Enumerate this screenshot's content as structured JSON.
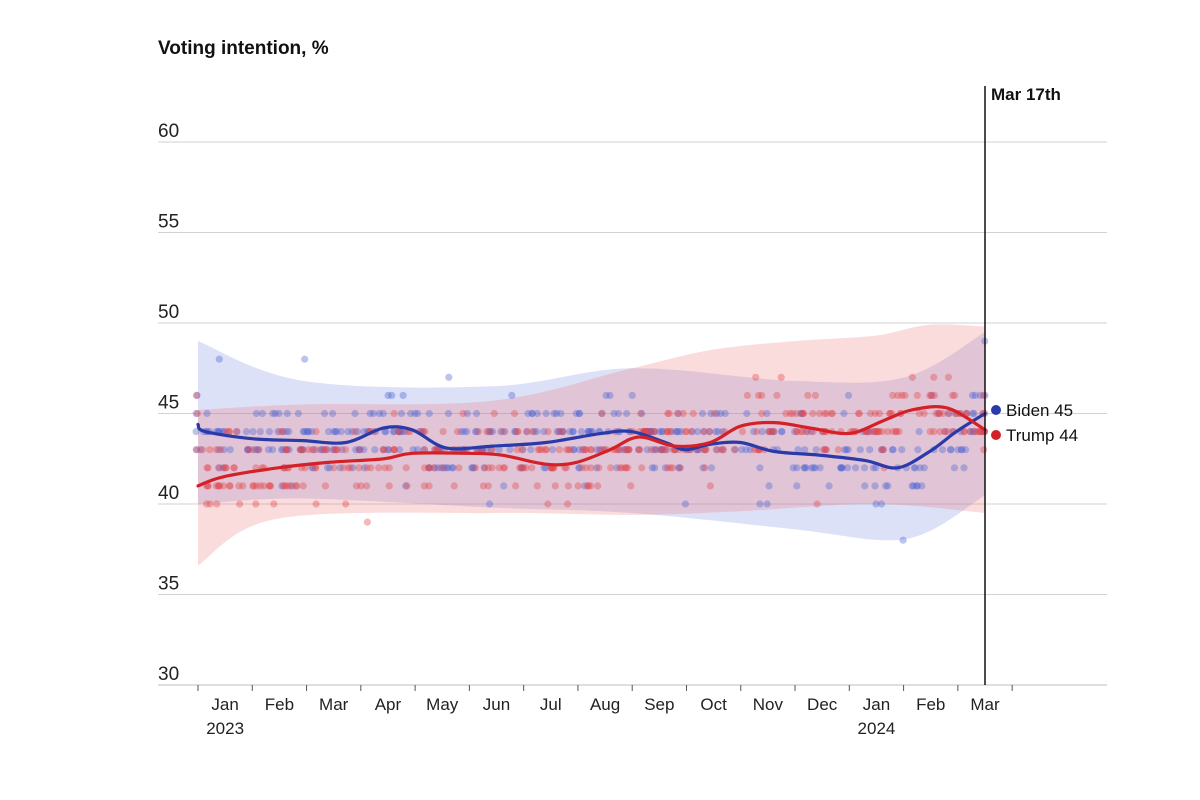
{
  "chart_data": {
    "type": "scatter",
    "title": "Voting intention, %",
    "xlabel": "",
    "ylabel": "",
    "ylim": [
      30,
      62
    ],
    "yticks": [
      30,
      35,
      40,
      45,
      50,
      55,
      60
    ],
    "grid": true,
    "x_range": [
      "2023-01-01",
      "2024-03-17"
    ],
    "month_ticks": [
      "Jan",
      "Feb",
      "Mar",
      "Apr",
      "May",
      "Jun",
      "Jul",
      "Aug",
      "Sep",
      "Oct",
      "Nov",
      "Dec",
      "Jan",
      "Feb",
      "Mar"
    ],
    "year_labels": [
      {
        "month_index": 0,
        "label": "2023"
      },
      {
        "month_index": 12,
        "label": "2024"
      }
    ],
    "marker": {
      "date": "2024-03-17",
      "label": "Mar 17th"
    },
    "series": [
      {
        "name": "Biden",
        "end_value": 45,
        "end_label": "Biden 45",
        "color": "#2a3aa8",
        "trend": [
          {
            "x": "2022-12-18",
            "y": 44.4
          },
          {
            "x": "2023-01-05",
            "y": 44.0
          },
          {
            "x": "2023-02-01",
            "y": 43.6
          },
          {
            "x": "2023-03-01",
            "y": 43.5
          },
          {
            "x": "2023-03-25",
            "y": 43.4
          },
          {
            "x": "2023-04-15",
            "y": 44.2
          },
          {
            "x": "2023-05-01",
            "y": 44.1
          },
          {
            "x": "2023-05-20",
            "y": 43.1
          },
          {
            "x": "2023-06-15",
            "y": 43.2
          },
          {
            "x": "2023-07-15",
            "y": 43.4
          },
          {
            "x": "2023-08-15",
            "y": 43.9
          },
          {
            "x": "2023-09-01",
            "y": 44.0
          },
          {
            "x": "2023-09-20",
            "y": 43.4
          },
          {
            "x": "2023-10-01",
            "y": 43.0
          },
          {
            "x": "2023-10-15",
            "y": 43.3
          },
          {
            "x": "2023-11-01",
            "y": 43.4
          },
          {
            "x": "2023-11-20",
            "y": 42.9
          },
          {
            "x": "2023-12-15",
            "y": 42.7
          },
          {
            "x": "2024-01-10",
            "y": 42.4
          },
          {
            "x": "2024-01-28",
            "y": 42.0
          },
          {
            "x": "2024-02-15",
            "y": 42.9
          },
          {
            "x": "2024-03-01",
            "y": 44.0
          },
          {
            "x": "2024-03-17",
            "y": 45.0
          }
        ],
        "band_upper": [
          {
            "x": "2022-12-18",
            "y": 49.0
          },
          {
            "x": "2023-03-01",
            "y": 46.8
          },
          {
            "x": "2023-06-15",
            "y": 46.5
          },
          {
            "x": "2023-09-01",
            "y": 47.5
          },
          {
            "x": "2023-12-01",
            "y": 46.8
          },
          {
            "x": "2024-02-01",
            "y": 47.0
          },
          {
            "x": "2024-03-17",
            "y": 49.5
          }
        ],
        "band_lower": [
          {
            "x": "2022-12-18",
            "y": 40.0
          },
          {
            "x": "2023-03-01",
            "y": 40.3
          },
          {
            "x": "2023-06-15",
            "y": 39.8
          },
          {
            "x": "2023-09-01",
            "y": 39.5
          },
          {
            "x": "2023-12-01",
            "y": 38.6
          },
          {
            "x": "2024-01-20",
            "y": 38.0
          },
          {
            "x": "2024-02-15",
            "y": 38.5
          },
          {
            "x": "2024-03-17",
            "y": 40.5
          }
        ]
      },
      {
        "name": "Trump",
        "end_value": 44,
        "end_label": "Trump 44",
        "color": "#d42027",
        "trend": [
          {
            "x": "2022-12-18",
            "y": 41.0
          },
          {
            "x": "2023-01-15",
            "y": 41.5
          },
          {
            "x": "2023-02-15",
            "y": 42.0
          },
          {
            "x": "2023-03-15",
            "y": 42.3
          },
          {
            "x": "2023-04-15",
            "y": 42.5
          },
          {
            "x": "2023-05-01",
            "y": 42.8
          },
          {
            "x": "2023-06-01",
            "y": 42.8
          },
          {
            "x": "2023-06-20",
            "y": 42.7
          },
          {
            "x": "2023-07-15",
            "y": 42.2
          },
          {
            "x": "2023-08-01",
            "y": 42.3
          },
          {
            "x": "2023-08-20",
            "y": 43.0
          },
          {
            "x": "2023-09-05",
            "y": 43.7
          },
          {
            "x": "2023-09-25",
            "y": 43.2
          },
          {
            "x": "2023-10-15",
            "y": 43.4
          },
          {
            "x": "2023-11-01",
            "y": 44.3
          },
          {
            "x": "2023-11-20",
            "y": 44.5
          },
          {
            "x": "2023-12-10",
            "y": 44.2
          },
          {
            "x": "2024-01-01",
            "y": 43.9
          },
          {
            "x": "2024-01-20",
            "y": 44.6
          },
          {
            "x": "2024-02-05",
            "y": 45.2
          },
          {
            "x": "2024-02-25",
            "y": 45.3
          },
          {
            "x": "2024-03-17",
            "y": 44.1
          }
        ],
        "band_upper": [
          {
            "x": "2022-12-18",
            "y": 45.2
          },
          {
            "x": "2023-03-01",
            "y": 45.5
          },
          {
            "x": "2023-06-15",
            "y": 45.7
          },
          {
            "x": "2023-09-01",
            "y": 47.5
          },
          {
            "x": "2023-10-15",
            "y": 48.5
          },
          {
            "x": "2023-12-01",
            "y": 49.0
          },
          {
            "x": "2024-01-15",
            "y": 49.3
          },
          {
            "x": "2024-02-15",
            "y": 49.9
          },
          {
            "x": "2024-03-17",
            "y": 49.8
          }
        ],
        "band_lower": [
          {
            "x": "2022-12-18",
            "y": 36.6
          },
          {
            "x": "2023-02-15",
            "y": 39.2
          },
          {
            "x": "2023-06-15",
            "y": 39.5
          },
          {
            "x": "2023-09-01",
            "y": 39.4
          },
          {
            "x": "2023-11-01",
            "y": 39.6
          },
          {
            "x": "2024-01-15",
            "y": 40.0
          },
          {
            "x": "2024-03-17",
            "y": 39.5
          }
        ]
      }
    ]
  }
}
